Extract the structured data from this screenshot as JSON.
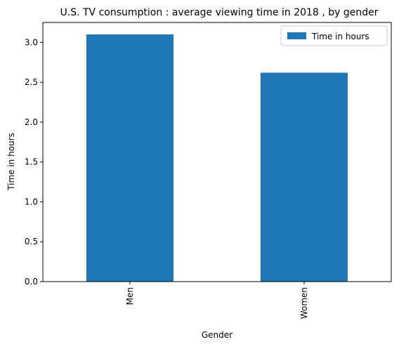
{
  "chart_data": {
    "type": "bar",
    "title": "U.S. TV consumption : average viewing time in 2018 , by gender",
    "xlabel": "Gender",
    "ylabel": "Time in hours",
    "categories": [
      "Men",
      "Women"
    ],
    "series": [
      {
        "name": "Time in hours",
        "values": [
          3.1,
          2.62
        ],
        "color": "#1f77b4"
      }
    ],
    "ylim": [
      0,
      3.25
    ],
    "yticks": [
      0.0,
      0.5,
      1.0,
      1.5,
      2.0,
      2.5,
      3.0
    ],
    "ytick_labels": [
      "0.0",
      "0.5",
      "1.0",
      "1.5",
      "2.0",
      "2.5",
      "3.0"
    ],
    "xtick_rotation": "vertical",
    "grid": false,
    "legend": {
      "position": "top-right"
    }
  }
}
